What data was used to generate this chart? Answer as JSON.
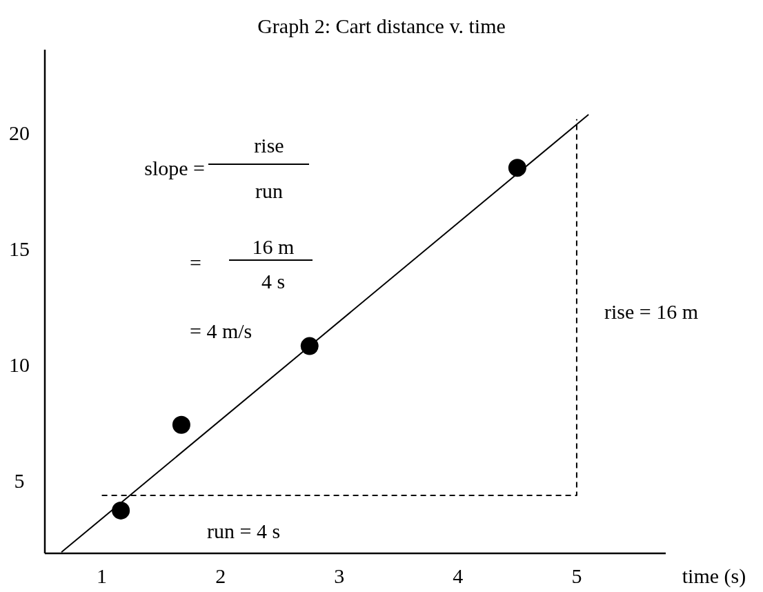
{
  "chart_data": {
    "type": "scatter",
    "title": "Graph 2: Cart distance v. time",
    "xlabel": "time (s)",
    "xlim": [
      0.52,
      5.75
    ],
    "ylim": [
      1.85,
      23.6
    ],
    "xticks": [
      1,
      2,
      3,
      4,
      5
    ],
    "yticks": [
      5,
      10,
      15,
      20
    ],
    "grid": false,
    "series": [
      {
        "color": "#000000",
        "marker": "circle",
        "x": [
          1.16,
          1.67,
          2.75,
          4.5
        ],
        "values": [
          3.7,
          7.4,
          10.8,
          18.5
        ]
      },
      {
        "type": "line",
        "color": "#000000",
        "line_style": "solid",
        "x": [
          0.66,
          5.1
        ],
        "values": [
          1.9,
          20.8
        ]
      },
      {
        "type": "line",
        "color": "#000000",
        "line_style": "dashed",
        "x": [
          1,
          5,
          5
        ],
        "values": [
          4.35,
          4.35,
          20.6
        ]
      }
    ],
    "annotations": [
      "slope =",
      "rise",
      "run",
      "=",
      "16 m",
      "4 s",
      "= 4 m/s",
      {
        "text": "rise = 16 m",
        "x": 5,
        "y": 12.3
      },
      "run = 4 s"
    ]
  }
}
